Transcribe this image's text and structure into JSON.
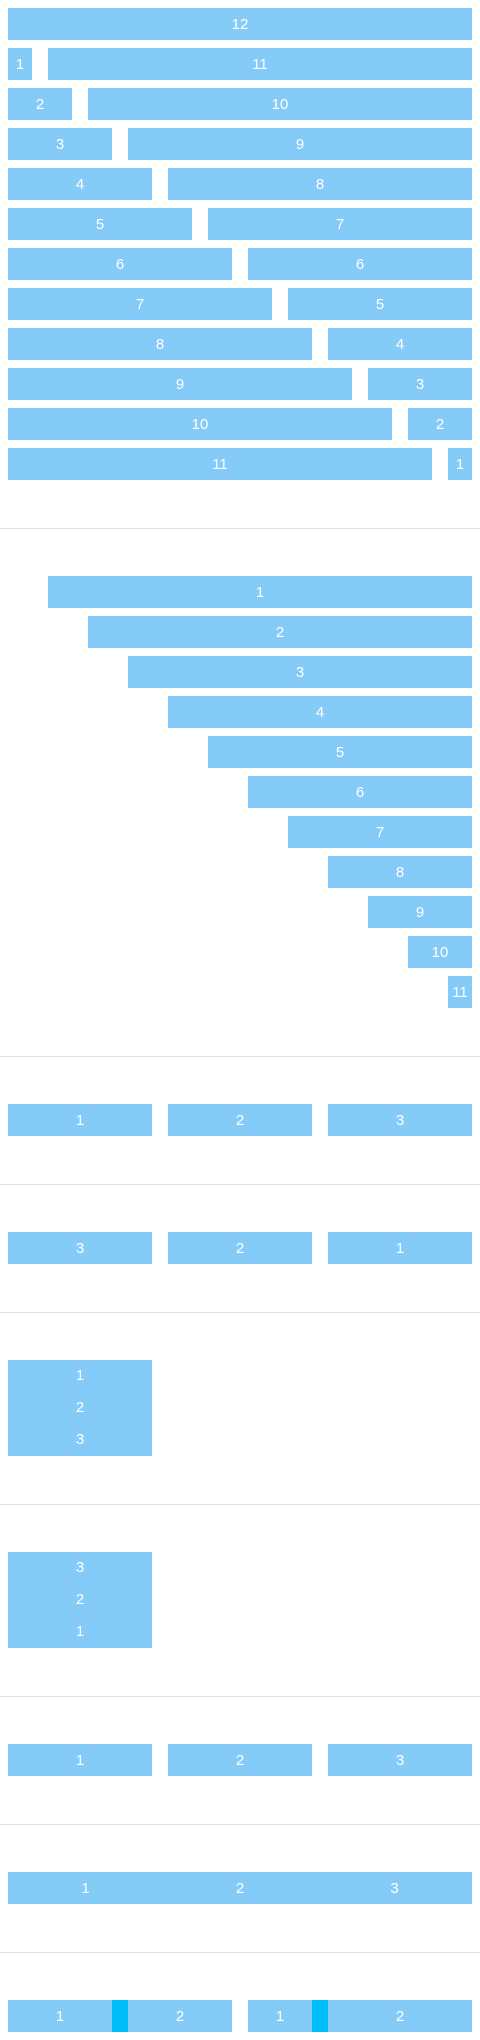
{
  "sections": [
    {
      "name": "grid-pairs",
      "rows": [
        [
          "12"
        ],
        [
          "1",
          "11"
        ],
        [
          "2",
          "10"
        ],
        [
          "3",
          "9"
        ],
        [
          "4",
          "8"
        ],
        [
          "5",
          "7"
        ],
        [
          "6",
          "6"
        ],
        [
          "7",
          "5"
        ],
        [
          "8",
          "4"
        ],
        [
          "9",
          "3"
        ],
        [
          "10",
          "2"
        ],
        [
          "11",
          "1"
        ]
      ]
    },
    {
      "name": "grid-offsets",
      "rows": [
        [
          "1"
        ],
        [
          "2"
        ],
        [
          "3"
        ],
        [
          "4"
        ],
        [
          "5"
        ],
        [
          "6"
        ],
        [
          "7"
        ],
        [
          "8"
        ],
        [
          "9"
        ],
        [
          "10"
        ],
        [
          "11"
        ]
      ]
    },
    {
      "name": "row-ordered",
      "items": [
        "1",
        "2",
        "3"
      ]
    },
    {
      "name": "row-reversed",
      "items": [
        "3",
        "2",
        "1"
      ]
    },
    {
      "name": "column-ordered",
      "items": [
        "1",
        "2",
        "3"
      ]
    },
    {
      "name": "column-reversed",
      "items": [
        "3",
        "2",
        "1"
      ]
    },
    {
      "name": "row-gapped",
      "items": [
        "1",
        "2",
        "3"
      ]
    },
    {
      "name": "row-joined",
      "items": [
        "1",
        "2",
        "3"
      ]
    },
    {
      "name": "nested-pairs",
      "groups": [
        {
          "left": "1",
          "right": "2"
        },
        {
          "left": "1",
          "right": "2"
        }
      ]
    }
  ],
  "colors": {
    "block": "#85cbf7",
    "accent": "#00bdf7",
    "divider": "#e1e1e1",
    "text": "#ffffff"
  }
}
